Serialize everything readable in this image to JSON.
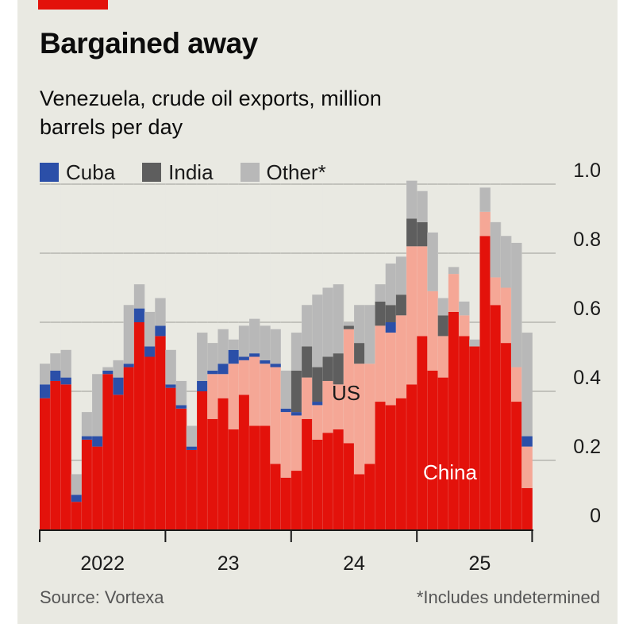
{
  "chart_data": {
    "type": "bar",
    "stacked": true,
    "title": "Bargained away",
    "subtitle": "Venezuela, crude oil exports, million barrels per day",
    "unit": "million barrels per day",
    "legend_entries": [
      {
        "key": "cuba",
        "label": "Cuba",
        "color": "#2b4fa8"
      },
      {
        "key": "india",
        "label": "India",
        "color": "#5e5e5e"
      },
      {
        "key": "other",
        "label": "Other*",
        "color": "#b8b8b8"
      }
    ],
    "in_chart_labels": {
      "us": "US",
      "china": "China"
    },
    "colors": {
      "china": "#e3120b",
      "us": "#f5a796",
      "cuba": "#2b4fa8",
      "india": "#5e5e5e",
      "other": "#b8b8b8"
    },
    "y_ticks": [
      "0",
      "0.2",
      "0.4",
      "0.6",
      "0.8",
      "1.0"
    ],
    "ylim": [
      0,
      1.0
    ],
    "x_ticks": [
      "2022",
      "23",
      "24",
      "25"
    ],
    "grid": true,
    "series": [
      {
        "name": "China",
        "key": "china",
        "values": [
          0.38,
          0.43,
          0.42,
          0.08,
          0.26,
          0.24,
          0.45,
          0.39,
          0.47,
          0.6,
          0.5,
          0.56,
          0.41,
          0.35,
          0.23,
          0.4,
          0.32,
          0.38,
          0.29,
          0.39,
          0.3,
          0.3,
          0.19,
          0.15,
          0.17,
          0.32,
          0.26,
          0.28,
          0.29,
          0.25,
          0.16,
          0.19,
          0.37,
          0.36,
          0.38,
          0.42,
          0.56,
          0.46,
          0.44,
          0.63,
          0.56,
          0.53,
          0.85,
          0.65,
          0.54,
          0.37,
          0.12
        ]
      },
      {
        "name": "US",
        "key": "us",
        "values": [
          0,
          0,
          0,
          0,
          0,
          0,
          0,
          0,
          0,
          0,
          0,
          0,
          0,
          0,
          0,
          0,
          0.13,
          0.07,
          0.19,
          0.1,
          0.2,
          0.18,
          0.28,
          0.19,
          0.16,
          0.12,
          0.1,
          0.15,
          0.13,
          0.33,
          0.32,
          0.29,
          0.22,
          0.21,
          0.24,
          0.4,
          0.26,
          0.23,
          0.12,
          0.11,
          0.06,
          0,
          0.07,
          0.08,
          0.16,
          0.1,
          0.12
        ]
      },
      {
        "name": "Cuba",
        "key": "cuba",
        "values": [
          0.04,
          0.03,
          0.02,
          0.02,
          0.01,
          0.03,
          0.01,
          0.05,
          0.01,
          0.04,
          0.03,
          0.03,
          0.01,
          0.01,
          0.01,
          0.03,
          0.01,
          0.03,
          0.04,
          0.01,
          0.01,
          0.01,
          0.01,
          0.01,
          0.01,
          0,
          0.01,
          0,
          0,
          0,
          0,
          0,
          0,
          0.03,
          0,
          0,
          0,
          0,
          0,
          0,
          0,
          0,
          0,
          0,
          0,
          0,
          0.03
        ]
      },
      {
        "name": "India",
        "key": "india",
        "values": [
          0,
          0,
          0,
          0,
          0,
          0,
          0,
          0,
          0,
          0,
          0,
          0,
          0,
          0,
          0,
          0,
          0,
          0,
          0,
          0,
          0,
          0,
          0,
          0,
          0.12,
          0.09,
          0.1,
          0.07,
          0.09,
          0.01,
          0.06,
          0,
          0.07,
          0.05,
          0.06,
          0.08,
          0.07,
          0,
          0.06,
          0,
          0,
          0,
          0,
          0,
          0,
          0,
          0
        ]
      },
      {
        "name": "Other*",
        "key": "other",
        "values": [
          0.06,
          0.05,
          0.08,
          0.06,
          0.07,
          0.18,
          0.01,
          0.05,
          0.17,
          0.07,
          0.1,
          0.08,
          0.1,
          0.07,
          0.06,
          0.14,
          0.08,
          0.1,
          0.03,
          0.09,
          0.1,
          0.1,
          0.1,
          0.11,
          0.11,
          0.12,
          0.21,
          0.2,
          0.2,
          0.01,
          0.11,
          0.17,
          0.05,
          0.12,
          0.11,
          0.11,
          0.09,
          0.17,
          0.05,
          0.02,
          0.04,
          0.02,
          0.07,
          0.16,
          0.15,
          0.36,
          0.3
        ]
      }
    ]
  },
  "source": "Source: Vortexa",
  "footnote": "*Includes undetermined"
}
